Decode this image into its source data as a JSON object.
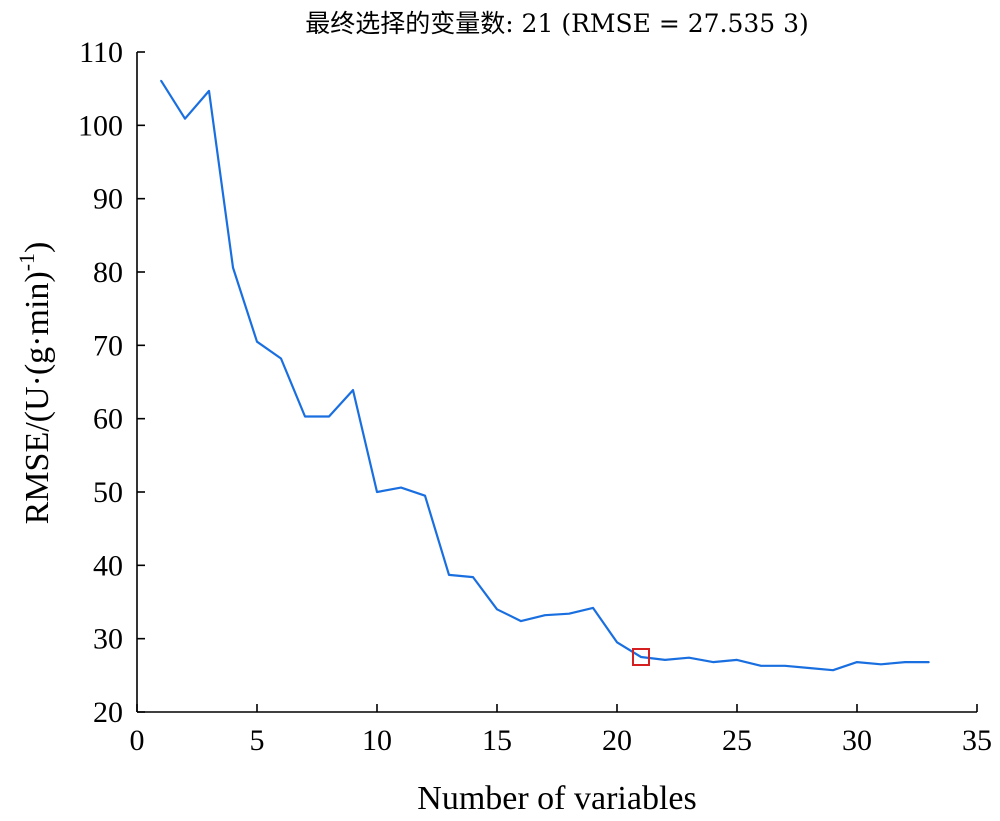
{
  "chart_data": {
    "type": "line",
    "title": "最终选择的变量数: 21  (RMSE = 27.535 3)",
    "xlabel": "Number of variables",
    "ylabel": "RMSE/(U·(g·min)",
    "ylabel_sup": "-1",
    "ylabel_close": ")",
    "xlim": [
      0,
      35
    ],
    "ylim": [
      20,
      110
    ],
    "xticks": [
      0,
      5,
      10,
      15,
      20,
      25,
      30,
      35
    ],
    "yticks": [
      20,
      30,
      40,
      50,
      60,
      70,
      80,
      90,
      100,
      110
    ],
    "grid": false,
    "series": [
      {
        "color": "#1a6fe0",
        "x": [
          1,
          2,
          3,
          4,
          5,
          6,
          7,
          8,
          9,
          10,
          11,
          12,
          13,
          14,
          15,
          16,
          17,
          18,
          19,
          20,
          21,
          22,
          23,
          24,
          25,
          26,
          27,
          28,
          29,
          30,
          31,
          32,
          33
        ],
        "y": [
          106.1,
          100.9,
          104.7,
          80.6,
          70.5,
          68.2,
          60.3,
          60.3,
          63.9,
          50.0,
          50.6,
          49.5,
          38.7,
          38.4,
          34.0,
          32.4,
          33.2,
          33.4,
          34.2,
          29.5,
          27.5,
          27.1,
          27.4,
          26.8,
          27.1,
          26.3,
          26.3,
          26.0,
          25.7,
          26.8,
          26.5,
          26.8,
          26.8
        ]
      }
    ],
    "highlight": {
      "x": 21,
      "y": 27.5,
      "color": "#d42020"
    }
  }
}
